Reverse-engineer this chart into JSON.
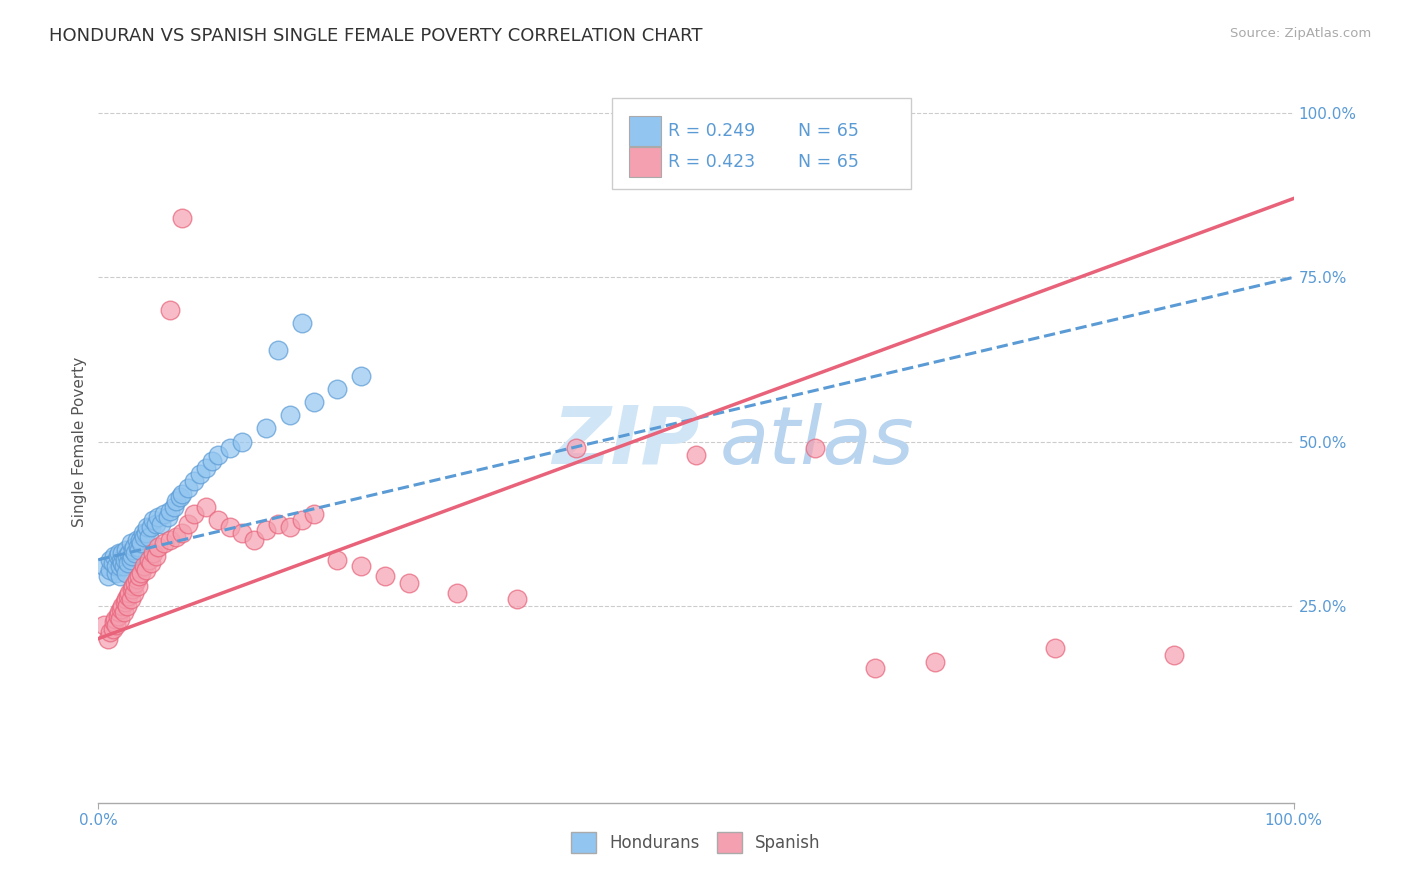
{
  "title": "HONDURAN VS SPANISH SINGLE FEMALE POVERTY CORRELATION CHART",
  "source": "Source: ZipAtlas.com",
  "ylabel": "Single Female Poverty",
  "xlim": [
    0.0,
    1.0
  ],
  "ylim": [
    -0.05,
    1.05
  ],
  "honduran_R": 0.249,
  "honduran_N": 65,
  "spanish_R": 0.423,
  "spanish_N": 65,
  "honduran_color": "#92C5F0",
  "spanish_color": "#F4A0B0",
  "trendline_honduran_color": "#5B9BD5",
  "trendline_spanish_color": "#E8637A",
  "watermark_color": "#C8DCF0",
  "background_color": "#FFFFFF",
  "honduran_x": [
    0.005,
    0.008,
    0.01,
    0.01,
    0.012,
    0.013,
    0.015,
    0.015,
    0.016,
    0.017,
    0.018,
    0.018,
    0.019,
    0.02,
    0.02,
    0.021,
    0.022,
    0.023,
    0.023,
    0.024,
    0.025,
    0.026,
    0.027,
    0.027,
    0.028,
    0.029,
    0.03,
    0.031,
    0.032,
    0.033,
    0.034,
    0.035,
    0.036,
    0.037,
    0.038,
    0.04,
    0.041,
    0.042,
    0.044,
    0.046,
    0.048,
    0.05,
    0.052,
    0.055,
    0.058,
    0.06,
    0.063,
    0.065,
    0.068,
    0.07,
    0.075,
    0.08,
    0.085,
    0.09,
    0.095,
    0.1,
    0.11,
    0.12,
    0.14,
    0.16,
    0.18,
    0.2,
    0.22,
    0.15,
    0.17
  ],
  "honduran_y": [
    0.31,
    0.295,
    0.305,
    0.32,
    0.315,
    0.325,
    0.3,
    0.31,
    0.325,
    0.33,
    0.295,
    0.31,
    0.32,
    0.315,
    0.33,
    0.31,
    0.32,
    0.3,
    0.335,
    0.325,
    0.315,
    0.33,
    0.32,
    0.345,
    0.325,
    0.335,
    0.34,
    0.33,
    0.35,
    0.34,
    0.335,
    0.35,
    0.345,
    0.36,
    0.355,
    0.36,
    0.37,
    0.355,
    0.37,
    0.38,
    0.375,
    0.385,
    0.375,
    0.39,
    0.385,
    0.395,
    0.4,
    0.41,
    0.415,
    0.42,
    0.43,
    0.44,
    0.45,
    0.46,
    0.47,
    0.48,
    0.49,
    0.5,
    0.52,
    0.54,
    0.56,
    0.58,
    0.6,
    0.64,
    0.68
  ],
  "spanish_x": [
    0.005,
    0.008,
    0.01,
    0.012,
    0.013,
    0.014,
    0.015,
    0.016,
    0.017,
    0.018,
    0.019,
    0.02,
    0.021,
    0.022,
    0.023,
    0.024,
    0.025,
    0.026,
    0.027,
    0.028,
    0.029,
    0.03,
    0.031,
    0.032,
    0.033,
    0.034,
    0.036,
    0.038,
    0.04,
    0.042,
    0.044,
    0.046,
    0.048,
    0.05,
    0.055,
    0.06,
    0.065,
    0.07,
    0.075,
    0.08,
    0.09,
    0.1,
    0.11,
    0.12,
    0.13,
    0.14,
    0.15,
    0.16,
    0.17,
    0.18,
    0.2,
    0.22,
    0.24,
    0.26,
    0.3,
    0.35,
    0.4,
    0.5,
    0.6,
    0.65,
    0.7,
    0.8,
    0.9,
    0.06,
    0.07
  ],
  "spanish_y": [
    0.22,
    0.2,
    0.21,
    0.215,
    0.225,
    0.23,
    0.22,
    0.235,
    0.24,
    0.23,
    0.245,
    0.25,
    0.24,
    0.255,
    0.26,
    0.25,
    0.265,
    0.27,
    0.26,
    0.275,
    0.28,
    0.27,
    0.285,
    0.29,
    0.28,
    0.295,
    0.3,
    0.31,
    0.305,
    0.32,
    0.315,
    0.33,
    0.325,
    0.34,
    0.345,
    0.35,
    0.355,
    0.36,
    0.375,
    0.39,
    0.4,
    0.38,
    0.37,
    0.36,
    0.35,
    0.365,
    0.375,
    0.37,
    0.38,
    0.39,
    0.32,
    0.31,
    0.295,
    0.285,
    0.27,
    0.26,
    0.49,
    0.48,
    0.49,
    0.155,
    0.165,
    0.185,
    0.175,
    0.7,
    0.84
  ]
}
